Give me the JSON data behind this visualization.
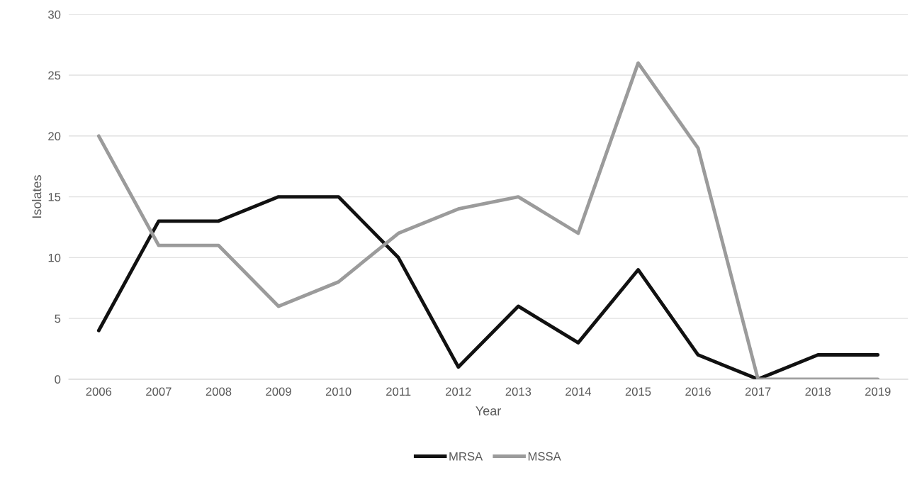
{
  "chart_data": {
    "type": "line",
    "xlabel": "Year",
    "ylabel": "Isolates",
    "categories": [
      "2006",
      "2007",
      "2008",
      "2009",
      "2010",
      "2011",
      "2012",
      "2013",
      "2014",
      "2015",
      "2016",
      "2017",
      "2018",
      "2019"
    ],
    "series": [
      {
        "name": "MRSA",
        "color": "#111111",
        "values": [
          4,
          13,
          13,
          15,
          15,
          10,
          1,
          6,
          3,
          9,
          2,
          0,
          2,
          2
        ]
      },
      {
        "name": "MSSA",
        "color": "#9b9b9b",
        "values": [
          20,
          11,
          11,
          6,
          8,
          12,
          14,
          15,
          12,
          26,
          19,
          0,
          0,
          0
        ]
      }
    ],
    "ylim": [
      0,
      30
    ],
    "yticks": [
      0,
      5,
      10,
      15,
      20,
      25,
      30
    ],
    "grid": "y",
    "legend": "bottom",
    "marker": "none",
    "line_style": "solid"
  }
}
